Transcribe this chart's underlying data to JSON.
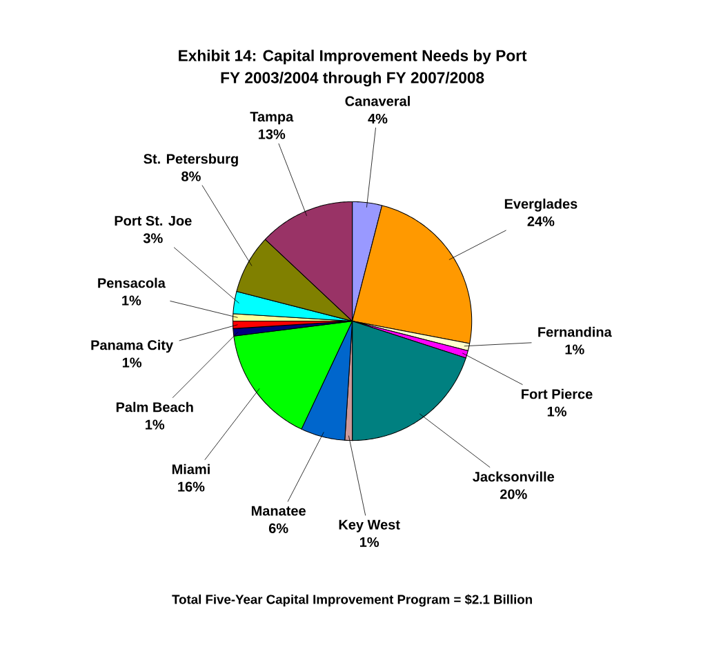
{
  "chart_data": {
    "type": "pie",
    "title": "Exhibit 14: Capital Improvement Needs by Port",
    "subtitle": "FY 2003/2004 through FY 2007/2008",
    "categories": [
      "Canaveral",
      "Everglades",
      "Fernandina",
      "Fort Pierce",
      "Jacksonville",
      "Key West",
      "Manatee",
      "Miami",
      "Palm Beach",
      "Panama City",
      "Pensacola",
      "Port St. Joe",
      "St. Petersburg",
      "Tampa"
    ],
    "values": [
      4,
      24,
      1,
      1,
      20,
      1,
      6,
      16,
      1,
      1,
      1,
      3,
      8,
      13
    ],
    "value_labels": [
      "4%",
      "24%",
      "1%",
      "1%",
      "20%",
      "1%",
      "6%",
      "16%",
      "1%",
      "1%",
      "1%",
      "3%",
      "8%",
      "13%"
    ],
    "colors": [
      "#9999ff",
      "#ff9900",
      "#ffffcc",
      "#ff00ff",
      "#008080",
      "#cc9999",
      "#0066cc",
      "#00ff00",
      "#000080",
      "#ff0000",
      "#ffff99",
      "#00ffff",
      "#808000",
      "#993366"
    ],
    "annotations": [
      "Total Five-Year Capital Improvement Program = $2.1 Billion"
    ]
  }
}
